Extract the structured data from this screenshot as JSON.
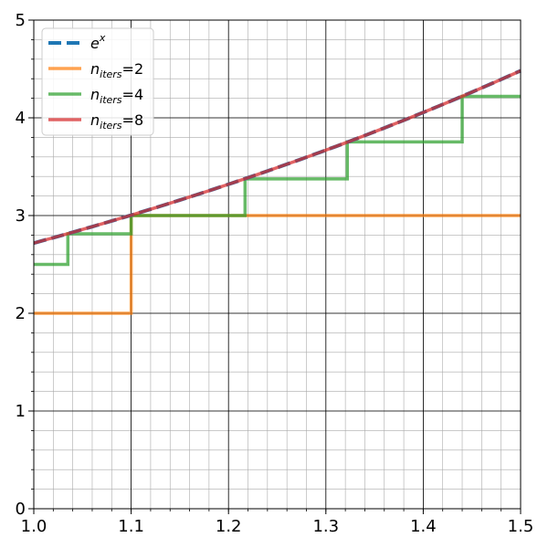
{
  "chart_data": {
    "type": "line",
    "title": "",
    "xlabel": "",
    "ylabel": "",
    "xlim": [
      1.0,
      1.5
    ],
    "ylim": [
      0,
      5
    ],
    "x_ticks": [
      1.0,
      1.1,
      1.2,
      1.3,
      1.4,
      1.5
    ],
    "x_tick_labels": [
      "1.0",
      "1.1",
      "1.2",
      "1.3",
      "1.4",
      "1.5"
    ],
    "y_ticks": [
      0,
      1,
      2,
      3,
      4,
      5
    ],
    "y_tick_labels": [
      "0",
      "1",
      "2",
      "3",
      "4",
      "5"
    ],
    "x_minor_step": 0.02,
    "y_minor_step": 0.2,
    "grid": true,
    "legend_placement": "upper-left",
    "series": [
      {
        "name": "e^x",
        "name_base": "e",
        "name_sup": "x",
        "color": "#1f77b4",
        "style": "dashed",
        "function": "exp",
        "x_range": [
          1.0,
          1.5
        ]
      },
      {
        "name": "n_iters=2",
        "name_base": "n",
        "name_sub": "iters",
        "name_suffix": "=2",
        "color": "#ff7f0e",
        "style": "solid",
        "steps": {
          "x": [
            1.0,
            1.1,
            1.5
          ],
          "y": [
            2.0,
            3.0,
            3.0
          ]
        }
      },
      {
        "name": "n_iters=4",
        "name_base": "n",
        "name_sub": "iters",
        "name_suffix": "=4",
        "color": "#2ca02c",
        "style": "solid",
        "steps": {
          "x": [
            1.0,
            1.035,
            1.1,
            1.217,
            1.322,
            1.44,
            1.5
          ],
          "y": [
            2.5,
            2.813,
            3.0,
            3.375,
            3.754,
            4.22,
            4.22
          ]
        }
      },
      {
        "name": "n_iters=8",
        "name_base": "n",
        "name_sub": "iters",
        "name_suffix": "=8",
        "color": "#d62728",
        "style": "solid",
        "approximates": "exp",
        "x_range": [
          1.0,
          1.5
        ]
      }
    ]
  }
}
